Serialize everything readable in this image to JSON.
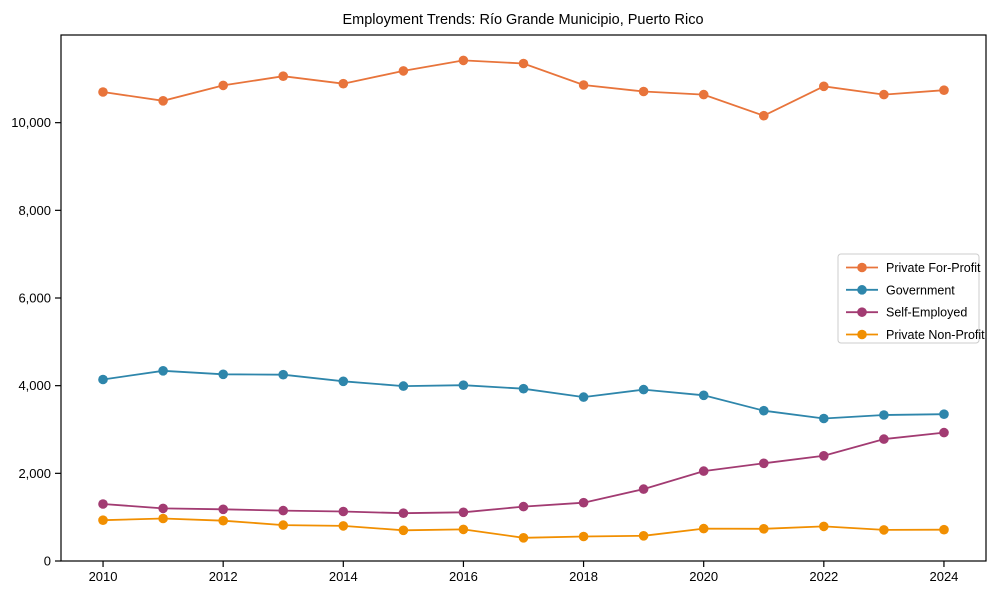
{
  "window": {
    "background_color": "#ffffff"
  },
  "chart_data": {
    "type": "line",
    "title": "Employment Trends: Río Grande Municipio, Puerto Rico",
    "xlabel": "",
    "ylabel": "",
    "x": [
      2010,
      2011,
      2012,
      2013,
      2014,
      2015,
      2016,
      2017,
      2018,
      2019,
      2020,
      2021,
      2022,
      2023,
      2024
    ],
    "series": [
      {
        "name": "Private For-Profit",
        "color": "#E8743B",
        "values": [
          10700,
          10500,
          10850,
          11060,
          10890,
          11180,
          11420,
          11350,
          10860,
          10710,
          10640,
          10160,
          10830,
          10640,
          10740
        ]
      },
      {
        "name": "Government",
        "color": "#2E86AB",
        "values": [
          4140,
          4340,
          4260,
          4250,
          4100,
          3990,
          4010,
          3930,
          3740,
          3910,
          3780,
          3430,
          3250,
          3330,
          3350
        ]
      },
      {
        "name": "Self-Employed",
        "color": "#A23B72",
        "values": [
          1300,
          1200,
          1180,
          1150,
          1130,
          1090,
          1110,
          1240,
          1330,
          1640,
          2050,
          2230,
          2400,
          2780,
          2930
        ]
      },
      {
        "name": "Private Non-Profit",
        "color": "#F18F01",
        "values": [
          930,
          970,
          920,
          820,
          800,
          700,
          720,
          530,
          560,
          575,
          740,
          735,
          790,
          710,
          715
        ]
      }
    ],
    "x_tick_values": [
      2010,
      2012,
      2014,
      2016,
      2018,
      2020,
      2022,
      2024
    ],
    "x_tick_labels": [
      "2010",
      "2012",
      "2014",
      "2016",
      "2018",
      "2020",
      "2022",
      "2024"
    ],
    "y_tick_values": [
      0,
      2000,
      4000,
      6000,
      8000,
      10000
    ],
    "y_tick_labels": [
      "0",
      "2,000",
      "4,000",
      "6,000",
      "8,000",
      "10,000"
    ],
    "xlim": [
      2009.3,
      2024.7
    ],
    "ylim": [
      0,
      12000
    ],
    "grid": false,
    "legend_position": "center right",
    "marker": "circle",
    "axis_color": "#000000",
    "legend_border_color": "#cccccc",
    "legend_background": "#ffffff"
  }
}
